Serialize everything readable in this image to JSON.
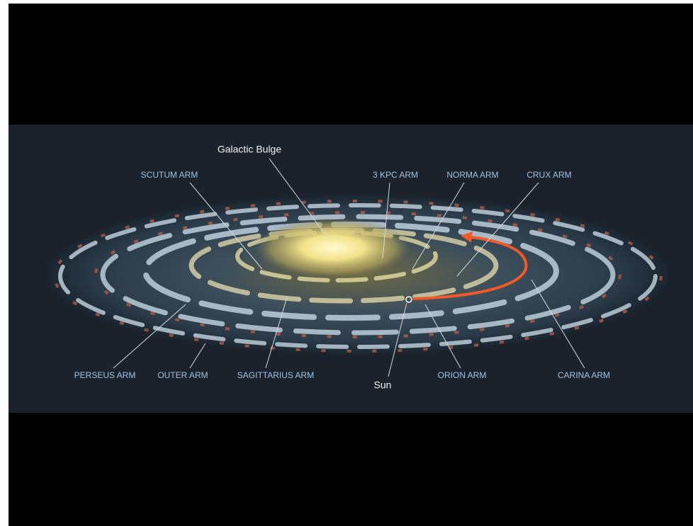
{
  "labels": [
    {
      "text": "Galactic Bulge"
    },
    {
      "text": "SCUTUM ARM"
    },
    {
      "text": "3 KPC ARM"
    },
    {
      "text": "NORMA ARM"
    },
    {
      "text": "CRUX ARM"
    },
    {
      "text": "PERSEUS ARM"
    },
    {
      "text": "OUTER ARM"
    },
    {
      "text": "SAGITTARIUS ARM"
    },
    {
      "text": "Sun"
    },
    {
      "text": "ORION ARM"
    },
    {
      "text": "CARINA ARM"
    }
  ]
}
